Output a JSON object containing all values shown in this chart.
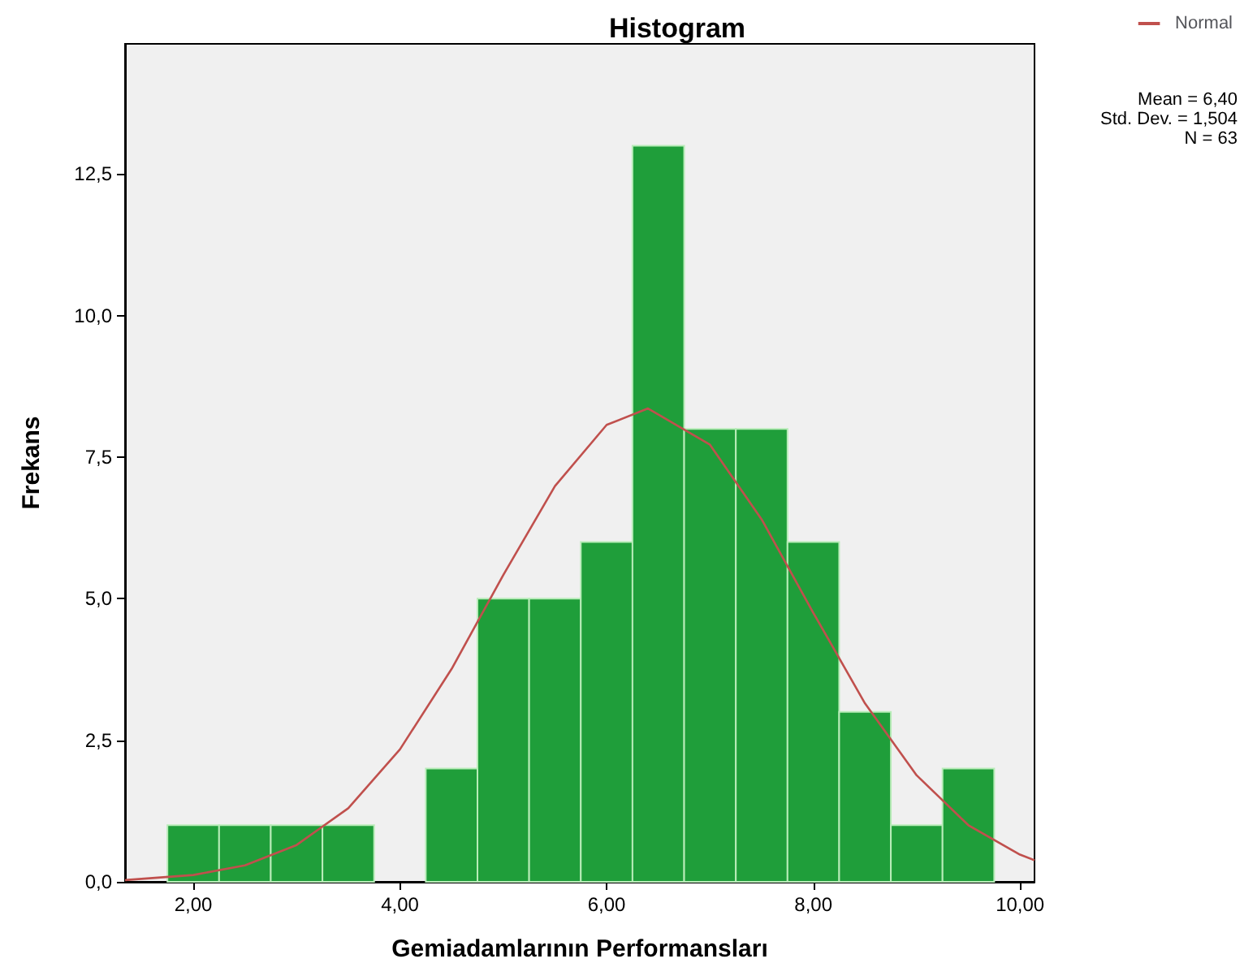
{
  "chart_data": {
    "type": "histogram",
    "title": "Histogram",
    "xlabel": "Gemiadamlarının Performansları",
    "ylabel": "Frekans",
    "bins": [
      1.75,
      2.25,
      2.75,
      3.25,
      3.75,
      4.25,
      4.75,
      5.25,
      5.75,
      6.25,
      6.75,
      7.25,
      7.75,
      8.25,
      8.75,
      9.25,
      9.75
    ],
    "values": [
      1,
      1,
      1,
      1,
      0,
      2,
      5,
      5,
      6,
      13,
      8,
      8,
      6,
      3,
      1,
      2
    ],
    "color": "#1f9e3a",
    "series": [
      {
        "name": "Normal",
        "type": "line",
        "color": "#c0504d",
        "x": [
          1.34,
          2,
          2.5,
          3,
          3.5,
          4,
          4.5,
          5,
          5.5,
          6,
          6.4,
          7,
          7.5,
          8,
          8.5,
          9,
          9.5,
          10,
          10.14
        ],
        "values": [
          0.03,
          0.12,
          0.29,
          0.65,
          1.3,
          2.34,
          3.76,
          5.42,
          6.99,
          8.07,
          8.36,
          7.72,
          6.4,
          4.75,
          3.15,
          1.88,
          1.0,
          0.48,
          0.38
        ]
      }
    ],
    "xlim": [
      1.34,
      10.14
    ],
    "ylim": [
      0,
      14.8
    ],
    "xticks": [
      {
        "value": 2,
        "label": "2,00"
      },
      {
        "value": 4,
        "label": "4,00"
      },
      {
        "value": 6,
        "label": "6,00"
      },
      {
        "value": 8,
        "label": "8,00"
      },
      {
        "value": 10,
        "label": "10,00"
      }
    ],
    "yticks": [
      {
        "value": 0,
        "label": "0,0"
      },
      {
        "value": 2.5,
        "label": "2,5"
      },
      {
        "value": 5,
        "label": "5,0"
      },
      {
        "value": 7.5,
        "label": "7,5"
      },
      {
        "value": 10,
        "label": "10,0"
      },
      {
        "value": 12.5,
        "label": "12,5"
      }
    ],
    "annotations": [
      "Mean = 6,40",
      "Std. Dev. = 1,504",
      "N = 63"
    ],
    "legend": "top right",
    "grid": false
  }
}
